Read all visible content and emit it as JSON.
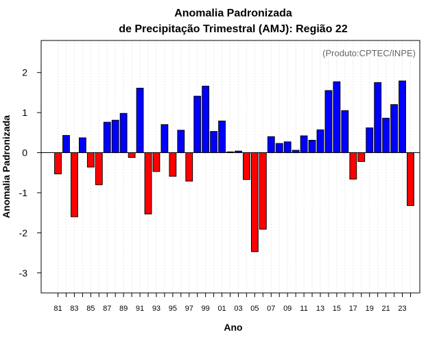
{
  "chart_data": {
    "type": "bar",
    "title": "Anomalia Padronizada",
    "subtitle": "de Precipitação Trimestral (AMJ): Região 22",
    "xlabel": "Ano",
    "ylabel": "Anomalia Padronizada",
    "annotation": "(Produto:CPTEC/INPE)",
    "ylim": [
      -3.5,
      2.8
    ],
    "yticks": [
      -3,
      -2,
      -1,
      0,
      1,
      2
    ],
    "ytick_labels": [
      "-3",
      "-2",
      "-1",
      "0",
      "1",
      "2"
    ],
    "grid": "vertical dotted",
    "categories": [
      "81",
      "82",
      "83",
      "84",
      "85",
      "86",
      "87",
      "88",
      "89",
      "90",
      "91",
      "92",
      "93",
      "94",
      "95",
      "96",
      "97",
      "98",
      "99",
      "00",
      "01",
      "02",
      "03",
      "04",
      "05",
      "06",
      "07",
      "08",
      "09",
      "10",
      "11",
      "12",
      "13",
      "14",
      "15",
      "16",
      "17",
      "18",
      "19",
      "20",
      "21",
      "22",
      "23",
      "24"
    ],
    "xtick_labels": [
      "81",
      "83",
      "85",
      "87",
      "89",
      "91",
      "93",
      "95",
      "97",
      "99",
      "01",
      "03",
      "05",
      "07",
      "09",
      "11",
      "13",
      "15",
      "17",
      "19",
      "21",
      "23"
    ],
    "values": [
      -0.53,
      0.43,
      -1.6,
      0.37,
      -0.36,
      -0.8,
      0.76,
      0.81,
      0.98,
      -0.12,
      1.61,
      -1.53,
      -0.47,
      0.7,
      -0.59,
      0.56,
      -0.71,
      1.41,
      1.66,
      0.53,
      0.79,
      0.02,
      0.04,
      -0.67,
      -2.47,
      -1.91,
      0.4,
      0.23,
      0.27,
      0.06,
      0.42,
      0.31,
      0.57,
      1.55,
      1.77,
      1.05,
      -0.66,
      -0.22,
      0.62,
      1.75,
      0.86,
      1.2,
      1.79,
      -1.32
    ],
    "colors": {
      "positive": "#0000ff",
      "negative": "#ff0000",
      "grid": "#d3d3d3",
      "annotation": "#666666"
    }
  }
}
